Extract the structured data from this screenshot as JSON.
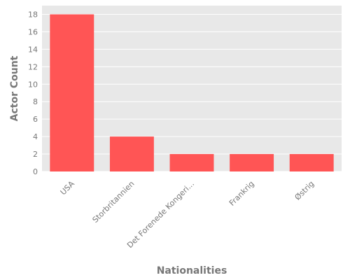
{
  "chart_data": {
    "type": "bar",
    "categories": [
      "USA",
      "Storbritannien",
      "Det Forenede Kongeri...",
      "Frankrig",
      "Østrig"
    ],
    "values": [
      18,
      4,
      2,
      2,
      2
    ],
    "xlabel": "Nationalities",
    "ylabel": "Actor Count",
    "ylim": [
      0,
      19
    ],
    "yticks": [
      0,
      2,
      4,
      6,
      8,
      10,
      12,
      14,
      16,
      18
    ],
    "bar_color": "#ff5555",
    "background_color": "#e8e8e8",
    "grid": true,
    "legend": "none"
  }
}
